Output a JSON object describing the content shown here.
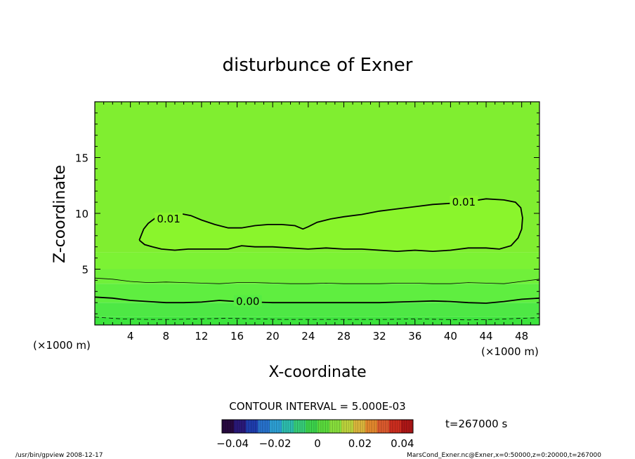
{
  "chart_data": {
    "type": "contour",
    "title": "disturbunce of Exner",
    "xlabel": "X-coordinate",
    "ylabel": "Z-coordinate",
    "x_unit": "(×1000 m)",
    "xlim": [
      0,
      50
    ],
    "ylim": [
      0,
      20
    ],
    "x_ticks": [
      {
        "value": 4,
        "label": "4"
      },
      {
        "value": 8,
        "label": "8"
      },
      {
        "value": 12,
        "label": "12"
      },
      {
        "value": 16,
        "label": "16"
      },
      {
        "value": 20,
        "label": "20"
      },
      {
        "value": 24,
        "label": "24"
      },
      {
        "value": 28,
        "label": "28"
      },
      {
        "value": 32,
        "label": "32"
      },
      {
        "value": 36,
        "label": "36"
      },
      {
        "value": 40,
        "label": "40"
      },
      {
        "value": 44,
        "label": "44"
      },
      {
        "value": 48,
        "label": "48"
      }
    ],
    "y_ticks": [
      {
        "value": 5,
        "label": "5"
      },
      {
        "value": 10,
        "label": "10"
      },
      {
        "value": 15,
        "label": "15"
      }
    ],
    "contours": [
      {
        "level": 0.01,
        "label": "0.01",
        "label_positions": [
          [
            8.3,
            9.5
          ],
          [
            41.5,
            11.0
          ]
        ],
        "path": [
          [
            5.0,
            7.6
          ],
          [
            5.2,
            8.0
          ],
          [
            5.5,
            8.6
          ],
          [
            6.0,
            9.1
          ],
          [
            7.0,
            9.7
          ],
          [
            8.5,
            9.8
          ],
          [
            9.5,
            10.0
          ],
          [
            10.8,
            9.8
          ],
          [
            12.0,
            9.4
          ],
          [
            13.5,
            9.0
          ],
          [
            15.0,
            8.7
          ],
          [
            16.5,
            8.7
          ],
          [
            18.0,
            8.9
          ],
          [
            19.5,
            9.0
          ],
          [
            21.0,
            9.0
          ],
          [
            22.5,
            8.9
          ],
          [
            23.4,
            8.6
          ],
          [
            24.0,
            8.8
          ],
          [
            25.0,
            9.2
          ],
          [
            26.5,
            9.5
          ],
          [
            28.0,
            9.7
          ],
          [
            30.0,
            9.9
          ],
          [
            32.0,
            10.2
          ],
          [
            34.0,
            10.4
          ],
          [
            36.0,
            10.6
          ],
          [
            38.0,
            10.8
          ],
          [
            40.0,
            10.9
          ],
          [
            41.5,
            11.0
          ],
          [
            44.0,
            11.3
          ],
          [
            46.0,
            11.2
          ],
          [
            47.3,
            11.0
          ],
          [
            47.9,
            10.5
          ],
          [
            48.1,
            9.6
          ],
          [
            48.0,
            8.6
          ],
          [
            47.6,
            7.8
          ],
          [
            46.8,
            7.1
          ],
          [
            45.5,
            6.8
          ],
          [
            44.0,
            6.9
          ],
          [
            42.0,
            6.9
          ],
          [
            40.0,
            6.7
          ],
          [
            38.0,
            6.6
          ],
          [
            36.0,
            6.7
          ],
          [
            34.0,
            6.6
          ],
          [
            32.0,
            6.7
          ],
          [
            30.0,
            6.8
          ],
          [
            28.0,
            6.8
          ],
          [
            26.0,
            6.9
          ],
          [
            24.0,
            6.8
          ],
          [
            22.0,
            6.9
          ],
          [
            20.0,
            7.0
          ],
          [
            18.0,
            7.0
          ],
          [
            16.5,
            7.1
          ],
          [
            15.0,
            6.8
          ],
          [
            13.5,
            6.8
          ],
          [
            12.0,
            6.8
          ],
          [
            10.5,
            6.8
          ],
          [
            9.0,
            6.7
          ],
          [
            7.5,
            6.8
          ],
          [
            6.5,
            7.0
          ],
          [
            5.6,
            7.2
          ],
          [
            5.0,
            7.6
          ]
        ]
      },
      {
        "level": 0.0,
        "label": "0.00",
        "label_positions": [
          [
            17.2,
            2.1
          ]
        ],
        "path": [
          [
            0,
            2.5
          ],
          [
            2,
            2.4
          ],
          [
            4,
            2.2
          ],
          [
            6,
            2.1
          ],
          [
            8,
            2.0
          ],
          [
            10,
            2.0
          ],
          [
            12,
            2.05
          ],
          [
            14,
            2.2
          ],
          [
            16,
            2.1
          ],
          [
            18,
            2.05
          ],
          [
            20,
            2.0
          ],
          [
            22,
            2.0
          ],
          [
            24,
            2.0
          ],
          [
            26,
            2.0
          ],
          [
            28,
            2.0
          ],
          [
            30,
            2.0
          ],
          [
            32,
            2.0
          ],
          [
            34,
            2.05
          ],
          [
            36,
            2.1
          ],
          [
            38,
            2.15
          ],
          [
            40,
            2.1
          ],
          [
            42,
            2.0
          ],
          [
            44,
            1.95
          ],
          [
            46,
            2.1
          ],
          [
            48,
            2.3
          ],
          [
            50,
            2.4
          ]
        ]
      },
      {
        "level": 0.005,
        "label": "",
        "path": [
          [
            0,
            4.2
          ],
          [
            2,
            4.1
          ],
          [
            4,
            3.9
          ],
          [
            6,
            3.8
          ],
          [
            8,
            3.85
          ],
          [
            10,
            3.8
          ],
          [
            12,
            3.75
          ],
          [
            14,
            3.7
          ],
          [
            16,
            3.8
          ],
          [
            18,
            3.8
          ],
          [
            20,
            3.75
          ],
          [
            22,
            3.7
          ],
          [
            24,
            3.7
          ],
          [
            26,
            3.75
          ],
          [
            28,
            3.7
          ],
          [
            30,
            3.7
          ],
          [
            32,
            3.7
          ],
          [
            34,
            3.75
          ],
          [
            36,
            3.75
          ],
          [
            38,
            3.7
          ],
          [
            40,
            3.7
          ],
          [
            42,
            3.8
          ],
          [
            44,
            3.75
          ],
          [
            46,
            3.7
          ],
          [
            48,
            3.9
          ],
          [
            50,
            4.1
          ]
        ]
      },
      {
        "level": -0.005,
        "label": "",
        "dashed": true,
        "path": [
          [
            0,
            0.7
          ],
          [
            3,
            0.55
          ],
          [
            6,
            0.5
          ],
          [
            9,
            0.5
          ],
          [
            12,
            0.55
          ],
          [
            15,
            0.6
          ],
          [
            18,
            0.55
          ],
          [
            21,
            0.5
          ],
          [
            24,
            0.5
          ],
          [
            27,
            0.5
          ],
          [
            30,
            0.5
          ],
          [
            33,
            0.5
          ],
          [
            36,
            0.55
          ],
          [
            39,
            0.5
          ],
          [
            42,
            0.45
          ],
          [
            45,
            0.5
          ],
          [
            48,
            0.6
          ],
          [
            50,
            0.65
          ]
        ]
      }
    ],
    "color_bands": [
      {
        "z_low": 0.0,
        "z_high": 0.7,
        "color": "#3ce43c"
      },
      {
        "z_low": 0.7,
        "z_high": 2.0,
        "color": "#4ee845"
      },
      {
        "z_low": 2.0,
        "z_high": 3.7,
        "color": "#5fee40"
      },
      {
        "z_low": 3.7,
        "z_high": 5.0,
        "color": "#70f03a"
      },
      {
        "z_low": 5.0,
        "z_high": 6.5,
        "color": "#7cf234"
      },
      {
        "z_low": 6.5,
        "z_high": 20.0,
        "color": "#80ee30"
      }
    ],
    "inner_fill": "#8af52c",
    "contour_interval_text": "CONTOUR INTERVAL = 5.000E-03",
    "colorbar": {
      "min": -0.045,
      "max": 0.045,
      "tick_labels": [
        "−0.04",
        "−0.02",
        "0",
        "0.02",
        "0.04"
      ],
      "tick_values": [
        -0.04,
        -0.02,
        0,
        0.02,
        0.04
      ],
      "colors": [
        "#2a0a44",
        "#2c1a80",
        "#2040b8",
        "#2a78d8",
        "#30a8e0",
        "#30c8b8",
        "#3ad880",
        "#40e050",
        "#60e840",
        "#90ec40",
        "#c8e040",
        "#e8c040",
        "#f09030",
        "#e86030",
        "#d83020",
        "#b81818"
      ]
    },
    "time_text": "t=267000 s"
  },
  "footer": {
    "left": "/usr/bin/gpview   2008-12-17",
    "right": "MarsCond_Exner.nc@Exner,x=0:50000,z=0:20000,t=267000"
  }
}
